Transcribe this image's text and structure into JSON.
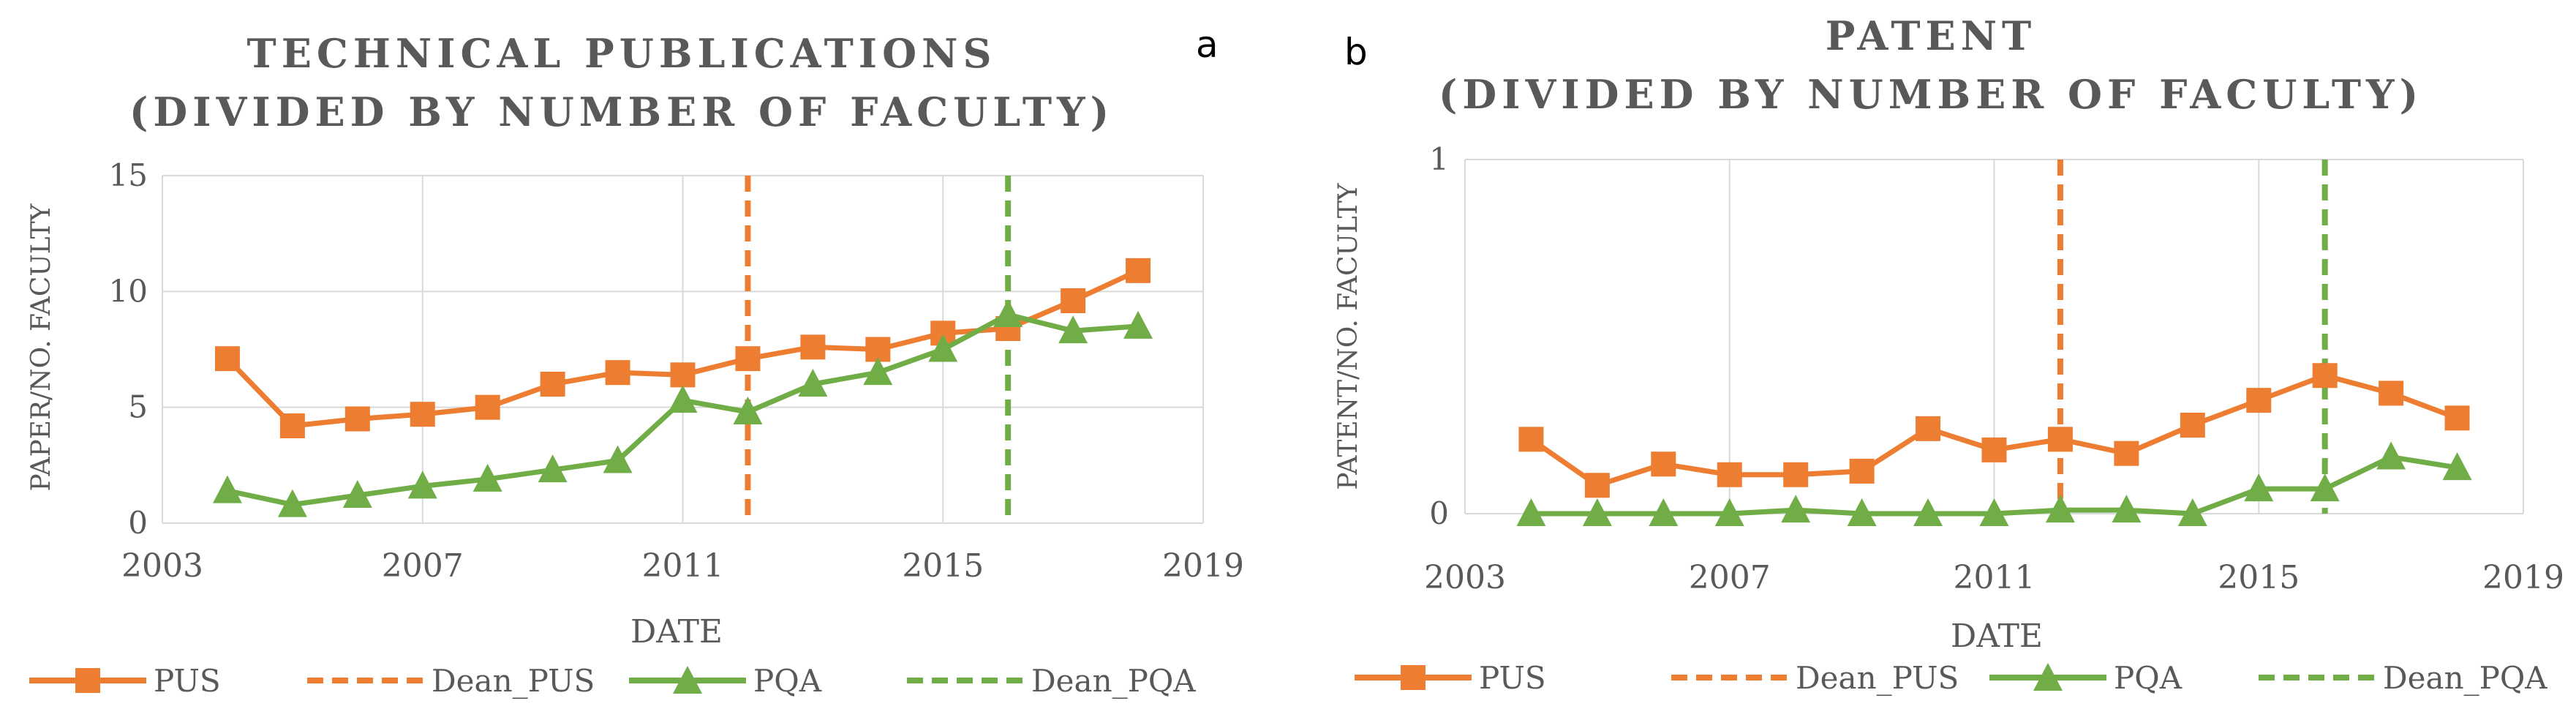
{
  "colors": {
    "PUS": "#ED7D31",
    "PQA": "#70AD47",
    "grid": "#d9d9d9",
    "text": "#595959"
  },
  "chart_data": [
    {
      "panel_label": "a",
      "type": "line",
      "title_line1": "TECHNICAL PUBLICATIONS",
      "title_line2": "(DIVIDED BY NUMBER OF FACULTY)",
      "xlabel": "DATE",
      "ylabel": "PAPER/NO. FACULTY",
      "xlim": [
        2003,
        2019
      ],
      "ylim": [
        0,
        15
      ],
      "xticks": [
        2003,
        2007,
        2011,
        2015,
        2019
      ],
      "yticks": [
        0,
        5,
        10,
        15
      ],
      "series": [
        {
          "name": "PUS",
          "color": "#ED7D31",
          "marker": "square",
          "x": [
            2004,
            2005,
            2006,
            2007,
            2008,
            2009,
            2010,
            2011,
            2012,
            2013,
            2014,
            2015,
            2016,
            2017,
            2018
          ],
          "y": [
            7.1,
            4.2,
            4.5,
            4.7,
            5.0,
            6.0,
            6.5,
            6.4,
            7.1,
            7.6,
            7.5,
            8.2,
            8.4,
            9.6,
            10.9
          ]
        },
        {
          "name": "PQA",
          "color": "#70AD47",
          "marker": "triangle",
          "x": [
            2004,
            2005,
            2006,
            2007,
            2008,
            2009,
            2010,
            2011,
            2012,
            2013,
            2014,
            2015,
            2016,
            2017,
            2018
          ],
          "y": [
            1.4,
            0.8,
            1.2,
            1.6,
            1.9,
            2.3,
            2.7,
            5.3,
            4.8,
            6.0,
            6.5,
            7.5,
            9.0,
            8.3,
            8.5
          ]
        }
      ],
      "vlines": [
        {
          "name": "Dean_PUS",
          "x": 2012,
          "color": "#ED7D31"
        },
        {
          "name": "Dean_PQA",
          "x": 2016,
          "color": "#70AD47"
        }
      ],
      "legend": [
        "PUS",
        "Dean_PUS",
        "PQA",
        "Dean_PQA"
      ]
    },
    {
      "panel_label": "b",
      "type": "line",
      "title_line1": "PATENT",
      "title_line2": "(DIVIDED BY NUMBER OF FACULTY)",
      "xlabel": "DATE",
      "ylabel": "PATENT/NO. FACULTY",
      "xlim": [
        2003,
        2019
      ],
      "ylim": [
        0,
        1
      ],
      "xticks": [
        2003,
        2007,
        2011,
        2015,
        2019
      ],
      "yticks": [
        0,
        1
      ],
      "series": [
        {
          "name": "PUS",
          "color": "#ED7D31",
          "marker": "square",
          "x": [
            2004,
            2005,
            2006,
            2007,
            2008,
            2009,
            2010,
            2011,
            2012,
            2013,
            2014,
            2015,
            2016,
            2017,
            2018
          ],
          "y": [
            0.21,
            0.08,
            0.14,
            0.11,
            0.11,
            0.12,
            0.24,
            0.18,
            0.21,
            0.17,
            0.25,
            0.32,
            0.39,
            0.34,
            0.27
          ]
        },
        {
          "name": "PQA",
          "color": "#70AD47",
          "marker": "triangle",
          "x": [
            2004,
            2005,
            2006,
            2007,
            2008,
            2009,
            2010,
            2011,
            2012,
            2013,
            2014,
            2015,
            2016,
            2017,
            2018
          ],
          "y": [
            0.0,
            0.0,
            0.0,
            0.0,
            0.01,
            0.0,
            0.0,
            0.0,
            0.01,
            0.01,
            0.0,
            0.07,
            0.07,
            0.16,
            0.13
          ]
        }
      ],
      "vlines": [
        {
          "name": "Dean_PUS",
          "x": 2012,
          "color": "#ED7D31"
        },
        {
          "name": "Dean_PQA",
          "x": 2016,
          "color": "#70AD47"
        }
      ],
      "legend": [
        "PUS",
        "Dean_PUS",
        "PQA",
        "Dean_PQA"
      ]
    }
  ]
}
